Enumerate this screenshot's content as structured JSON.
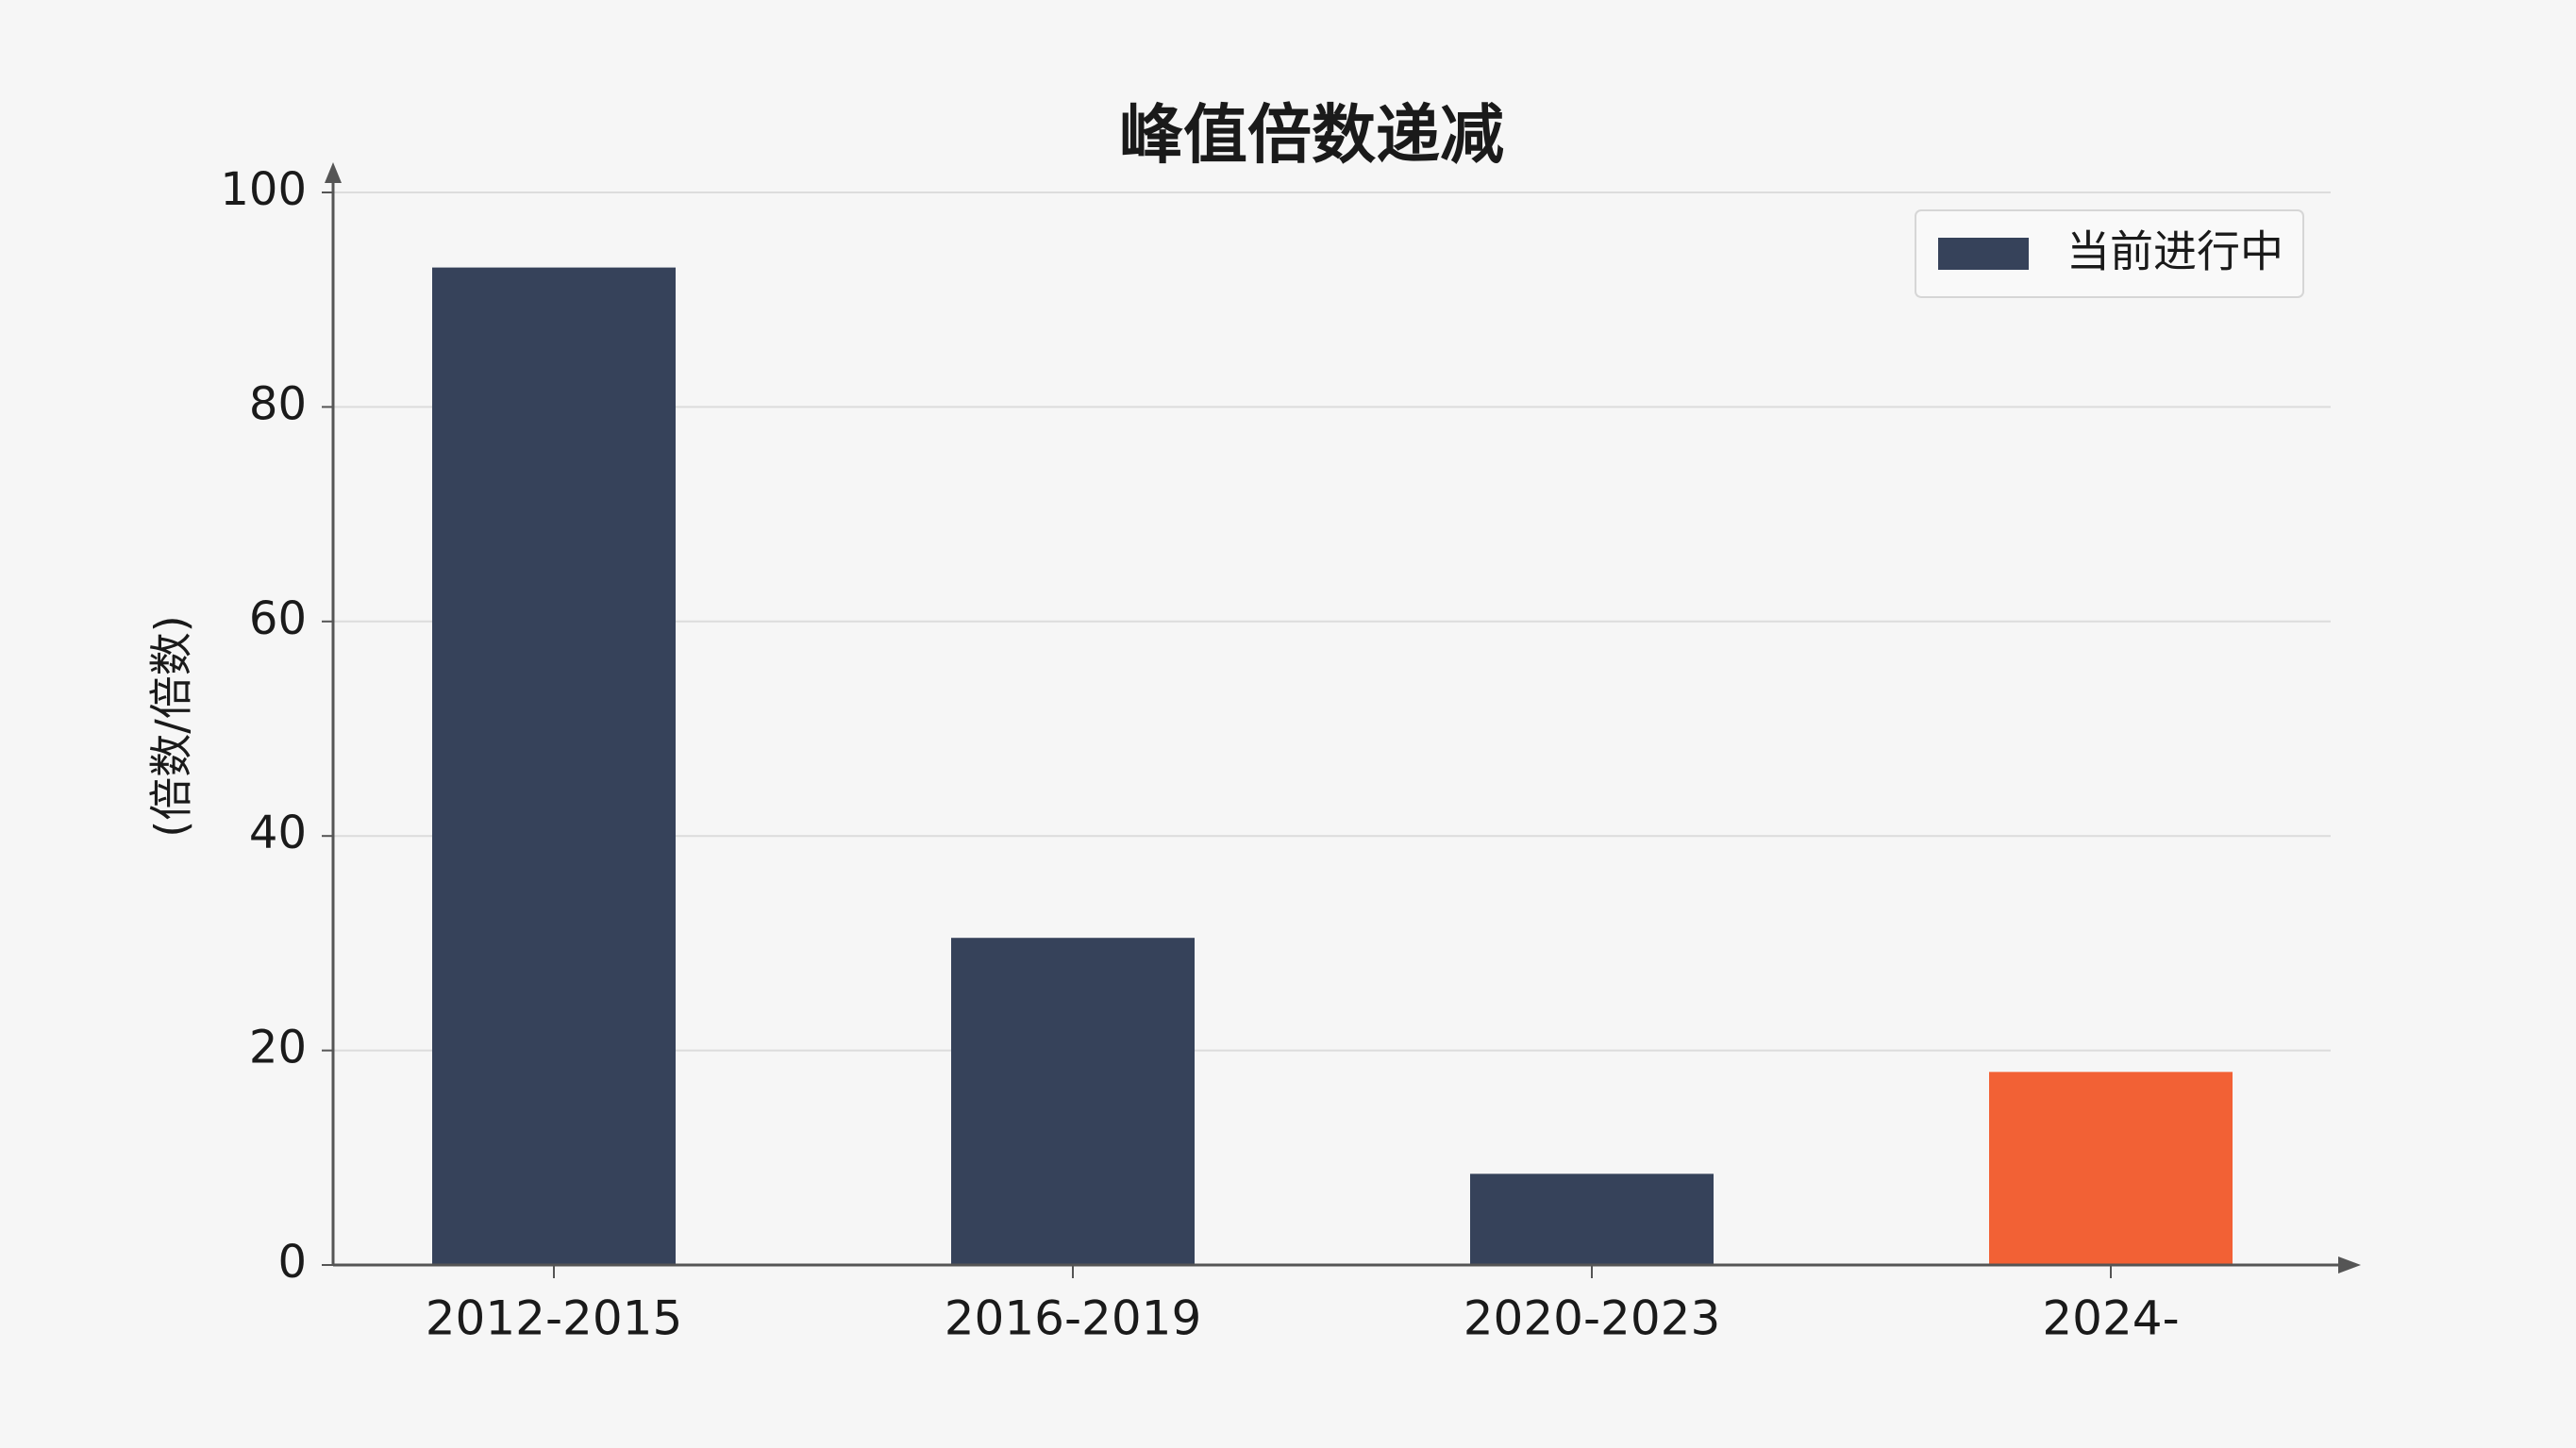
{
  "chart_data": {
    "type": "bar",
    "title": "峰值倍数递减",
    "y_label": "(倍数/倍数)",
    "categories": [
      "2012-2015",
      "2016-2019",
      "2020-2023",
      "2024-"
    ],
    "series": [
      {
        "name": "当前进行中",
        "color": "#36425a",
        "values": [
          93,
          30.5,
          8.5,
          18
        ]
      }
    ],
    "bar_colors": [
      "#36425a",
      "#36425a",
      "#36425a",
      "#f26135"
    ],
    "ylim": [
      0,
      100
    ],
    "yticks": [
      0,
      20,
      40,
      60,
      80,
      100
    ],
    "grid": true,
    "legend": "upper right"
  }
}
